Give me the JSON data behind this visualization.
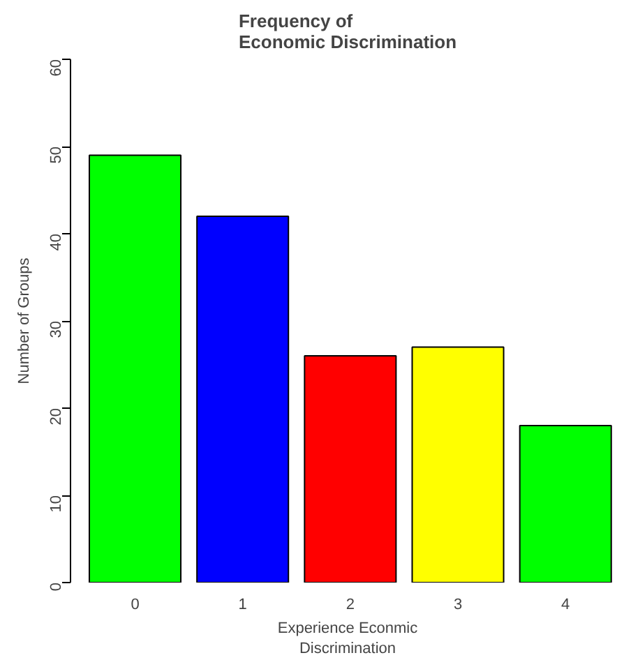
{
  "chart_data": {
    "type": "bar",
    "title": "Frequency of\nEconomic Discrimination",
    "xlabel": "Experience Econmic\nDiscrimination",
    "ylabel": "Number of Groups",
    "categories": [
      "0",
      "1",
      "2",
      "3",
      "4"
    ],
    "values": [
      49,
      42,
      26,
      27,
      18
    ],
    "colors": [
      "#00ff00",
      "#0000ff",
      "#ff0000",
      "#ffff00",
      "#00ff00"
    ],
    "ylim": [
      0,
      60
    ],
    "yticks": [
      0,
      10,
      20,
      30,
      40,
      50,
      60
    ],
    "grid": false
  }
}
